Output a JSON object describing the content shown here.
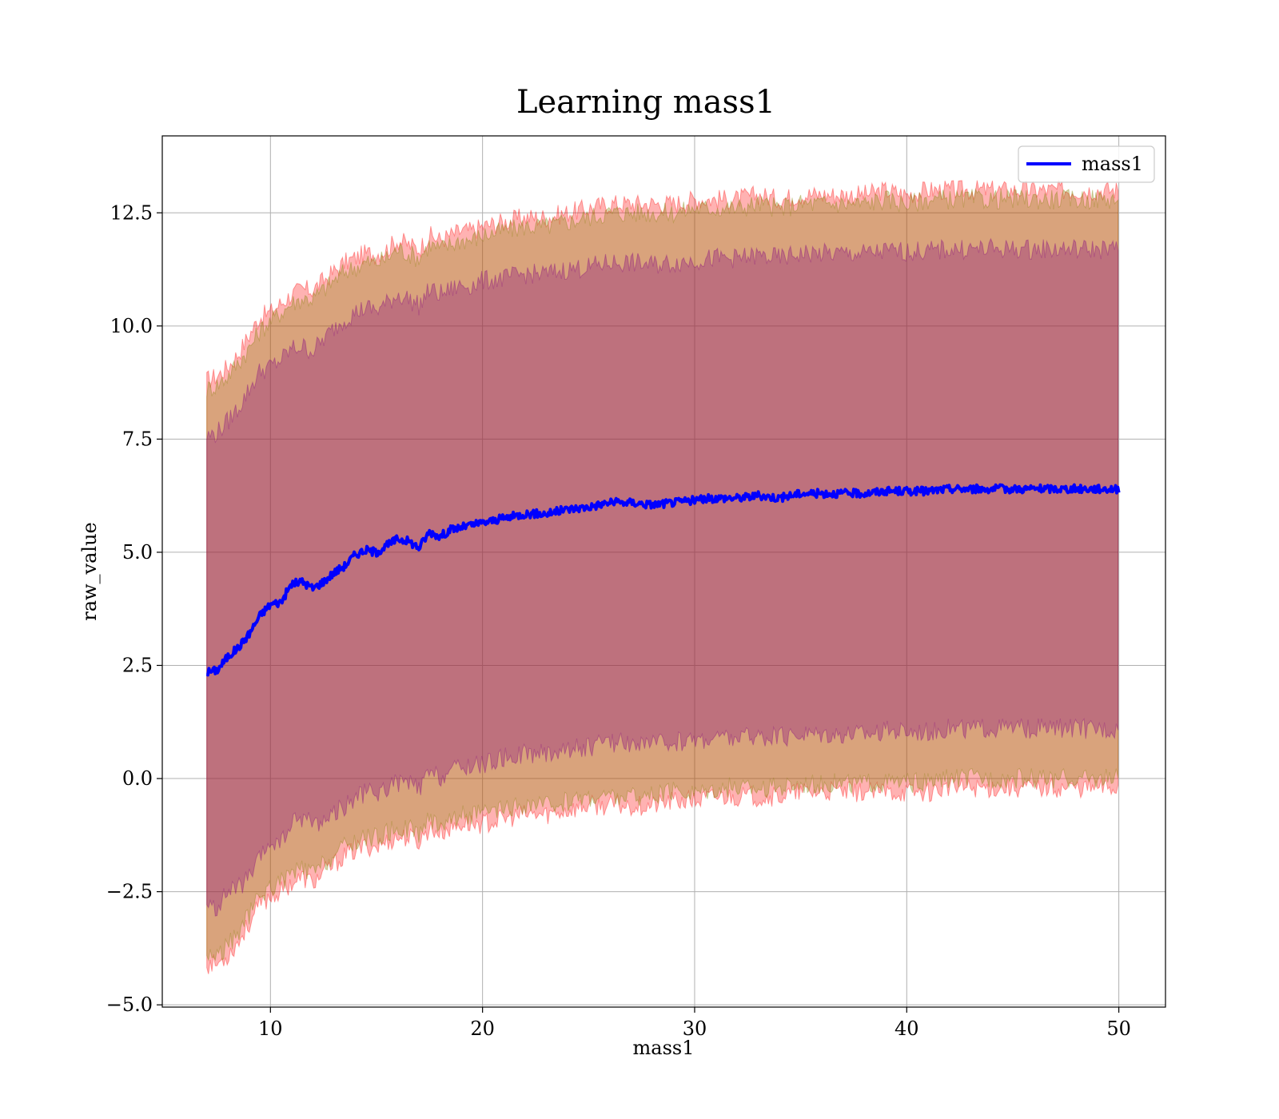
{
  "chart_data": {
    "type": "line",
    "title": "Learning mass1",
    "xlabel": "mass1",
    "ylabel": "raw_value",
    "xlim": [
      4.9,
      52.2
    ],
    "ylim": [
      -5.05,
      14.2
    ],
    "xticks": [
      10,
      20,
      30,
      40,
      50
    ],
    "xtick_labels": [
      "10",
      "20",
      "30",
      "40",
      "50"
    ],
    "yticks": [
      -5.0,
      -2.5,
      0.0,
      2.5,
      5.0,
      7.5,
      10.0,
      12.5
    ],
    "ytick_labels": [
      "−5.0",
      "−2.5",
      "0.0",
      "2.5",
      "5.0",
      "7.5",
      "10.0",
      "12.5"
    ],
    "grid": true,
    "legend": {
      "position": "top-right",
      "entries": [
        "mass1"
      ]
    },
    "series": [
      {
        "name": "mass1",
        "color": "#0000ff",
        "x": [
          7,
          7.5,
          8,
          8.5,
          9,
          9.5,
          10,
          10.5,
          11,
          11.5,
          12,
          12.5,
          13,
          13.5,
          14,
          14.5,
          15,
          15.5,
          16,
          16.5,
          17,
          17.5,
          18,
          18.5,
          19,
          19.5,
          20,
          21,
          22,
          23,
          24,
          25,
          26,
          27,
          28,
          29,
          30,
          31,
          32,
          33,
          34,
          35,
          36,
          37,
          38,
          39,
          40,
          41,
          42,
          43,
          44,
          45,
          46,
          47,
          48,
          49,
          50
        ],
        "y": [
          2.35,
          2.4,
          2.7,
          2.9,
          3.2,
          3.6,
          3.85,
          3.9,
          4.3,
          4.35,
          4.2,
          4.35,
          4.55,
          4.7,
          4.95,
          5.05,
          5.0,
          5.15,
          5.3,
          5.25,
          5.1,
          5.45,
          5.35,
          5.5,
          5.55,
          5.6,
          5.65,
          5.75,
          5.85,
          5.85,
          5.95,
          6.0,
          6.1,
          6.1,
          6.05,
          6.1,
          6.15,
          6.2,
          6.2,
          6.25,
          6.2,
          6.3,
          6.3,
          6.3,
          6.3,
          6.35,
          6.35,
          6.35,
          6.4,
          6.4,
          6.4,
          6.4,
          6.4,
          6.4,
          6.4,
          6.4,
          6.4
        ]
      }
    ],
    "bands": [
      {
        "color": "#ff0000",
        "opacity": 0.3,
        "x": [
          7,
          7.5,
          8,
          8.5,
          9,
          9.5,
          10,
          10.5,
          11,
          11.5,
          12,
          12.5,
          13,
          13.5,
          14,
          14.5,
          15,
          15.5,
          16,
          16.5,
          17,
          17.5,
          18,
          18.5,
          19,
          19.5,
          20,
          21,
          22,
          23,
          24,
          25,
          26,
          27,
          28,
          29,
          30,
          31,
          32,
          33,
          34,
          35,
          36,
          37,
          38,
          39,
          40,
          41,
          42,
          43,
          44,
          45,
          46,
          47,
          48,
          49,
          50
        ],
        "upper": [
          8.8,
          8.9,
          9.1,
          9.4,
          9.8,
          10.2,
          10.3,
          10.5,
          10.7,
          10.8,
          10.8,
          11.0,
          11.2,
          11.4,
          11.5,
          11.6,
          11.6,
          11.7,
          11.9,
          11.8,
          11.7,
          12.0,
          11.9,
          12.0,
          12.1,
          12.1,
          12.2,
          12.3,
          12.4,
          12.4,
          12.5,
          12.6,
          12.7,
          12.7,
          12.7,
          12.7,
          12.8,
          12.8,
          12.8,
          12.9,
          12.8,
          12.9,
          12.9,
          12.9,
          12.9,
          13.0,
          12.9,
          13.0,
          13.0,
          13.0,
          13.0,
          13.0,
          13.0,
          13.0,
          13.0,
          13.0,
          13.0
        ],
        "lower": [
          -4.1,
          -4.1,
          -3.9,
          -3.6,
          -3.2,
          -2.8,
          -2.6,
          -2.5,
          -2.3,
          -2.2,
          -2.3,
          -2.1,
          -1.9,
          -1.7,
          -1.6,
          -1.5,
          -1.5,
          -1.4,
          -1.3,
          -1.3,
          -1.4,
          -1.1,
          -1.2,
          -1.1,
          -1.0,
          -1.0,
          -1.0,
          -0.9,
          -0.8,
          -0.8,
          -0.7,
          -0.6,
          -0.6,
          -0.6,
          -0.6,
          -0.5,
          -0.5,
          -0.4,
          -0.4,
          -0.4,
          -0.4,
          -0.3,
          -0.3,
          -0.3,
          -0.3,
          -0.3,
          -0.3,
          -0.3,
          -0.2,
          -0.2,
          -0.2,
          -0.2,
          -0.2,
          -0.2,
          -0.2,
          -0.2,
          -0.2
        ]
      },
      {
        "color": "#808000",
        "opacity": 0.3,
        "x": [
          7,
          7.5,
          8,
          8.5,
          9,
          9.5,
          10,
          10.5,
          11,
          11.5,
          12,
          12.5,
          13,
          13.5,
          14,
          14.5,
          15,
          15.5,
          16,
          16.5,
          17,
          17.5,
          18,
          18.5,
          19,
          19.5,
          20,
          21,
          22,
          23,
          24,
          25,
          26,
          27,
          28,
          29,
          30,
          31,
          32,
          33,
          34,
          35,
          36,
          37,
          38,
          39,
          40,
          41,
          42,
          43,
          44,
          45,
          46,
          47,
          48,
          49,
          50
        ],
        "upper": [
          8.6,
          8.7,
          8.9,
          9.2,
          9.5,
          9.9,
          10.1,
          10.3,
          10.5,
          10.6,
          10.6,
          10.8,
          11.0,
          11.2,
          11.3,
          11.4,
          11.4,
          11.5,
          11.7,
          11.6,
          11.5,
          11.8,
          11.7,
          11.8,
          11.9,
          11.9,
          12.0,
          12.1,
          12.2,
          12.2,
          12.3,
          12.4,
          12.5,
          12.5,
          12.5,
          12.5,
          12.6,
          12.6,
          12.6,
          12.7,
          12.6,
          12.7,
          12.7,
          12.7,
          12.7,
          12.8,
          12.7,
          12.8,
          12.8,
          12.8,
          12.8,
          12.8,
          12.8,
          12.8,
          12.8,
          12.8,
          12.8
        ],
        "lower": [
          -3.9,
          -3.9,
          -3.7,
          -3.4,
          -3.0,
          -2.6,
          -2.4,
          -2.3,
          -2.1,
          -2.0,
          -2.1,
          -1.9,
          -1.7,
          -1.5,
          -1.4,
          -1.3,
          -1.3,
          -1.2,
          -1.1,
          -1.1,
          -1.2,
          -0.9,
          -1.0,
          -0.9,
          -0.8,
          -0.8,
          -0.8,
          -0.7,
          -0.6,
          -0.6,
          -0.5,
          -0.4,
          -0.4,
          -0.4,
          -0.4,
          -0.3,
          -0.3,
          -0.2,
          -0.2,
          -0.2,
          -0.2,
          -0.1,
          -0.1,
          -0.1,
          -0.1,
          -0.1,
          -0.1,
          -0.1,
          0.0,
          0.0,
          0.0,
          0.0,
          0.0,
          0.0,
          0.0,
          0.0,
          0.0
        ]
      },
      {
        "color": "#800080",
        "opacity": 0.3,
        "x": [
          7,
          7.5,
          8,
          8.5,
          9,
          9.5,
          10,
          10.5,
          11,
          11.5,
          12,
          12.5,
          13,
          13.5,
          14,
          14.5,
          15,
          15.5,
          16,
          16.5,
          17,
          17.5,
          18,
          18.5,
          19,
          19.5,
          20,
          21,
          22,
          23,
          24,
          25,
          26,
          27,
          28,
          29,
          30,
          31,
          32,
          33,
          34,
          35,
          36,
          37,
          38,
          39,
          40,
          41,
          42,
          43,
          44,
          45,
          46,
          47,
          48,
          49,
          50
        ],
        "upper": [
          7.55,
          7.65,
          7.9,
          8.2,
          8.6,
          9.0,
          9.1,
          9.25,
          9.5,
          9.55,
          9.45,
          9.7,
          9.95,
          10.15,
          10.3,
          10.4,
          10.35,
          10.5,
          10.7,
          10.6,
          10.45,
          10.8,
          10.7,
          10.8,
          10.9,
          10.9,
          11.0,
          11.05,
          11.15,
          11.15,
          11.25,
          11.3,
          11.4,
          11.4,
          11.35,
          11.4,
          11.45,
          11.5,
          11.5,
          11.55,
          11.5,
          11.6,
          11.6,
          11.6,
          11.6,
          11.65,
          11.65,
          11.65,
          11.7,
          11.7,
          11.7,
          11.7,
          11.7,
          11.7,
          11.7,
          11.7,
          11.7
        ],
        "lower": [
          -2.85,
          -2.85,
          -2.5,
          -2.4,
          -2.2,
          -1.8,
          -1.4,
          -1.45,
          -1.0,
          -0.85,
          -0.95,
          -0.95,
          -0.75,
          -0.6,
          -0.45,
          -0.3,
          -0.35,
          -0.2,
          -0.1,
          -0.1,
          -0.25,
          0.1,
          0.0,
          0.2,
          0.2,
          0.3,
          0.3,
          0.45,
          0.55,
          0.55,
          0.65,
          0.7,
          0.8,
          0.8,
          0.75,
          0.8,
          0.85,
          0.9,
          0.9,
          0.95,
          0.9,
          1.0,
          1.0,
          1.0,
          1.0,
          1.05,
          1.05,
          1.05,
          1.1,
          1.1,
          1.1,
          1.1,
          1.1,
          1.1,
          1.1,
          1.1,
          1.1
        ]
      }
    ]
  },
  "colors": {
    "line": "#0000ff",
    "grid": "#b0b0b0",
    "axes": "#000000",
    "legend_border": "#cccccc"
  }
}
